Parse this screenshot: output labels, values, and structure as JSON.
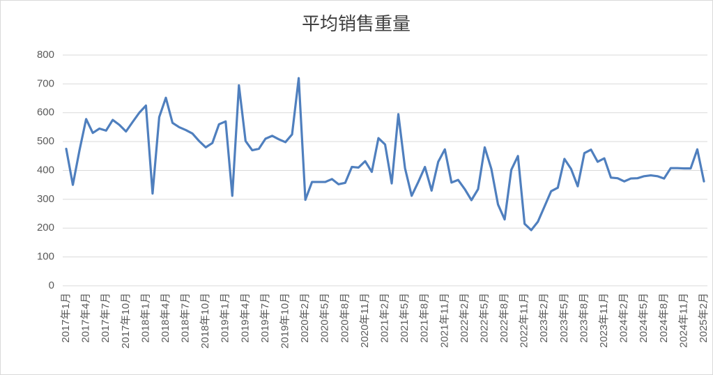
{
  "chart_data": {
    "type": "line",
    "title": "平均销售重量",
    "categories": [
      "2017年1月",
      null,
      null,
      "2017年4月",
      null,
      null,
      "2017年7月",
      null,
      null,
      "2017年10月",
      null,
      null,
      "2018年1月",
      null,
      null,
      "2018年4月",
      null,
      null,
      "2018年7月",
      null,
      null,
      "2018年10月",
      null,
      null,
      "2019年1月",
      null,
      null,
      "2019年4月",
      null,
      null,
      "2019年7月",
      null,
      null,
      "2019年10月",
      null,
      null,
      "2020年2月",
      null,
      null,
      "2020年5月",
      null,
      null,
      "2020年8月",
      null,
      null,
      "2020年11月",
      null,
      null,
      "2021年2月",
      null,
      null,
      "2021年5月",
      null,
      null,
      "2021年8月",
      null,
      null,
      "2021年11月",
      null,
      null,
      "2022年2月",
      null,
      null,
      "2022年5月",
      null,
      null,
      "2022年8月",
      null,
      null,
      "2022年11月",
      null,
      null,
      "2023年2月",
      null,
      null,
      "2023年5月",
      null,
      null,
      "2023年8月",
      null,
      null,
      "2023年11月",
      null,
      null,
      "2024年2月",
      null,
      null,
      "2024年5月",
      null,
      null,
      "2024年8月",
      null,
      null,
      "2024年11月",
      null,
      null,
      "2025年2月"
    ],
    "values": [
      475,
      350,
      470,
      578,
      530,
      545,
      538,
      575,
      558,
      535,
      568,
      600,
      625,
      320,
      585,
      652,
      565,
      550,
      540,
      528,
      502,
      480,
      495,
      560,
      570,
      312,
      695,
      502,
      470,
      475,
      510,
      520,
      508,
      498,
      525,
      720,
      298,
      360,
      360,
      360,
      370,
      352,
      357,
      412,
      410,
      432,
      395,
      512,
      490,
      355,
      595,
      408,
      312,
      360,
      412,
      330,
      430,
      473,
      358,
      367,
      335,
      297,
      335,
      480,
      405,
      282,
      230,
      402,
      450,
      215,
      193,
      222,
      275,
      328,
      340,
      440,
      405,
      345,
      460,
      472,
      430,
      442,
      375,
      373,
      362,
      372,
      373,
      380,
      383,
      380,
      372,
      408,
      408,
      407,
      407,
      473,
      362
    ],
    "color": "#4f7fbe",
    "ylim": [
      0,
      800
    ],
    "yticks": [
      0,
      100,
      200,
      300,
      400,
      500,
      600,
      700,
      800
    ],
    "grid": true
  }
}
